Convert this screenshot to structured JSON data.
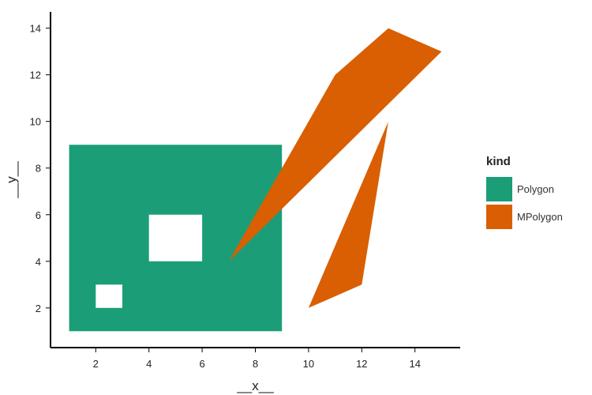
{
  "chart_data": {
    "type": "area",
    "xlabel": "__x__",
    "ylabel": "__y__",
    "xlim": [
      0.3,
      15.7
    ],
    "ylim": [
      0.3,
      14.7
    ],
    "xticks": [
      2,
      4,
      6,
      8,
      10,
      12,
      14
    ],
    "yticks": [
      2,
      4,
      6,
      8,
      10,
      12,
      14
    ],
    "legend": {
      "title": "kind",
      "position": "right"
    },
    "series": [
      {
        "name": "Polygon",
        "color": "#1b9e77",
        "rings": [
          [
            [
              1,
              1
            ],
            [
              9,
              1
            ],
            [
              9,
              9
            ],
            [
              1,
              9
            ]
          ],
          [
            [
              4,
              4
            ],
            [
              6,
              4
            ],
            [
              6,
              6
            ],
            [
              4,
              6
            ]
          ],
          [
            [
              2,
              2
            ],
            [
              3,
              2
            ],
            [
              3,
              3
            ],
            [
              2,
              3
            ]
          ]
        ]
      },
      {
        "name": "MPolygon",
        "color": "#d95f02",
        "polygons": [
          [
            [
              7,
              4
            ],
            [
              11,
              12
            ],
            [
              13,
              14
            ],
            [
              15,
              13
            ]
          ],
          [
            [
              10,
              2
            ],
            [
              12,
              3
            ],
            [
              13,
              10
            ]
          ]
        ]
      }
    ]
  }
}
